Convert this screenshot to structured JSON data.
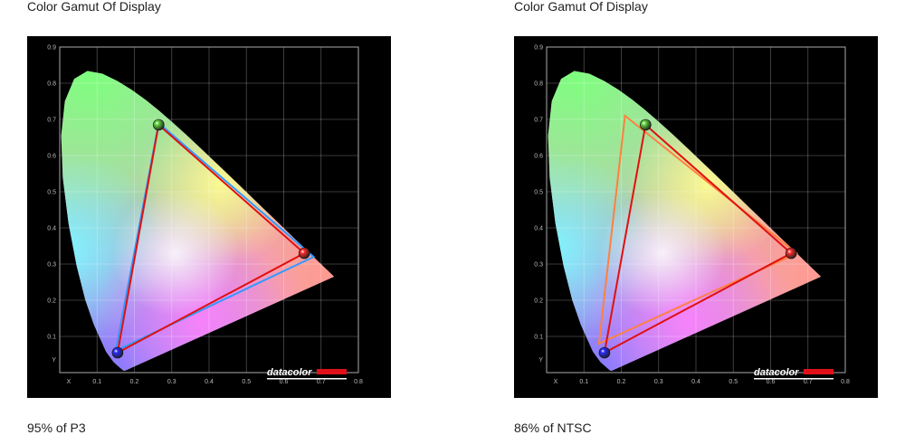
{
  "chart_data": [
    {
      "type": "scatter",
      "title": "Color Gamut Of Display",
      "caption": "95% of P3",
      "xlabel": "X",
      "ylabel": "Y",
      "xlim": [
        0,
        0.8
      ],
      "ylim": [
        0,
        0.9
      ],
      "x_ticks": [
        "0.1",
        "0.2",
        "0.3",
        "0.4",
        "0.5",
        "0.6",
        "0.7",
        "0.8"
      ],
      "y_ticks": [
        "0.1",
        "0.2",
        "0.3",
        "0.4",
        "0.5",
        "0.6",
        "0.7",
        "0.8",
        "0.9"
      ],
      "grid": true,
      "logo": "datacolor",
      "series": [
        {
          "x": [
            0.265,
            0.655,
            0.155
          ],
          "y": [
            0.685,
            0.33,
            0.055
          ],
          "color": "#e01010",
          "closed": true,
          "markers": true
        },
        {
          "x": [
            0.265,
            0.68,
            0.15
          ],
          "y": [
            0.69,
            0.32,
            0.06
          ],
          "color": "#3399ff",
          "closed": true,
          "markers": false
        }
      ]
    },
    {
      "type": "scatter",
      "title": "Color Gamut Of Display",
      "caption": "86% of NTSC",
      "xlabel": "X",
      "ylabel": "Y",
      "xlim": [
        0,
        0.8
      ],
      "ylim": [
        0,
        0.9
      ],
      "x_ticks": [
        "0.1",
        "0.2",
        "0.3",
        "0.4",
        "0.5",
        "0.6",
        "0.7",
        "0.8"
      ],
      "y_ticks": [
        "0.1",
        "0.2",
        "0.3",
        "0.4",
        "0.5",
        "0.6",
        "0.7",
        "0.8",
        "0.9"
      ],
      "grid": true,
      "logo": "datacolor",
      "series": [
        {
          "x": [
            0.265,
            0.655,
            0.155
          ],
          "y": [
            0.685,
            0.33,
            0.055
          ],
          "color": "#e01010",
          "closed": true,
          "markers": true
        },
        {
          "x": [
            0.21,
            0.67,
            0.14
          ],
          "y": [
            0.71,
            0.33,
            0.08
          ],
          "color": "#ff8040",
          "closed": true,
          "markers": false
        }
      ]
    }
  ]
}
